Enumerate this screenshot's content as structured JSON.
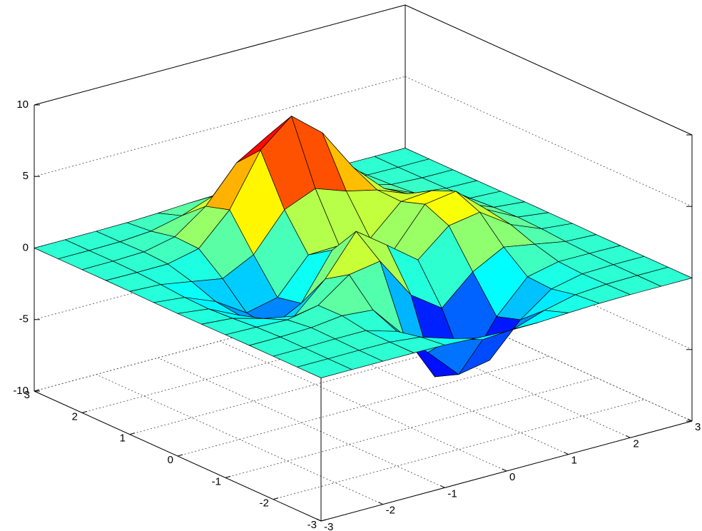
{
  "chart_data": {
    "type": "surface",
    "x": [
      -3,
      -2.5,
      -2,
      -1.5,
      -1,
      -0.5,
      0,
      0.5,
      1,
      1.5,
      2,
      2.5,
      3
    ],
    "y": [
      -3,
      -2.5,
      -2,
      -1.5,
      -1,
      -0.5,
      0,
      0.5,
      1,
      1.5,
      2,
      2.5,
      3
    ],
    "z": [
      [
        0,
        0,
        0,
        0,
        -0.03,
        -0.14,
        -0.24,
        -0.22,
        -0.11,
        -0.03,
        0,
        0,
        0
      ],
      [
        0,
        0,
        0.01,
        0,
        -0.23,
        -0.92,
        -1.57,
        -1.41,
        -0.69,
        -0.18,
        -0.03,
        0,
        0
      ],
      [
        0,
        0.01,
        0.05,
        0.05,
        -0.59,
        -2.64,
        -4.76,
        -4.35,
        -2.1,
        -0.53,
        -0.06,
        0,
        0
      ],
      [
        0,
        0.01,
        0.08,
        0.33,
        0.15,
        -2.19,
        -5.68,
        -5.76,
        -2.64,
        -0.44,
        0.04,
        0.03,
        0
      ],
      [
        -0.01,
        -0.06,
        -0.13,
        0.3,
        1.86,
        2.22,
        -0.72,
        -2.22,
        -0.27,
        0.88,
        0.5,
        0.11,
        0.01
      ],
      [
        -0.03,
        -0.2,
        -0.8,
        -1.21,
        0.8,
        3.55,
        2,
        0.39,
        2.2,
        2.56,
        1.12,
        0.24,
        0.03
      ],
      [
        -0.04,
        -0.3,
        -1.33,
        -2.77,
        -1.65,
        1.48,
        0.98,
        0.37,
        2.94,
        3.27,
        1.41,
        0.3,
        0.03
      ],
      [
        -0.03,
        -0.25,
        -1.12,
        -2.49,
        -2,
        0.39,
        0.46,
        0.38,
        2.38,
        2.56,
        1.09,
        0.23,
        0.03
      ],
      [
        -0.01,
        -0.11,
        -0.48,
        -0.86,
        0.23,
        2.79,
        3.69,
        2.93,
        2.43,
        1.58,
        0.58,
        0.11,
        0.01
      ],
      [
        0,
        -0.02,
        -0.01,
        0.48,
        2.61,
        6.2,
        8,
        6.25,
        3.25,
        1.19,
        0.29,
        0.05,
        0
      ],
      [
        0,
        0.01,
        0.08,
        0.55,
        2.1,
        4.56,
        5.86,
        4.57,
        2.21,
        0.68,
        0.13,
        0.02,
        0
      ],
      [
        0,
        0,
        0.03,
        0.19,
        0.69,
        1.47,
        1.88,
        1.47,
        0.7,
        0.2,
        0.04,
        0,
        0
      ],
      [
        0,
        0,
        0.01,
        0.03,
        0.11,
        0.23,
        0.3,
        0.23,
        0.11,
        0.03,
        0.01,
        0,
        0
      ]
    ],
    "xlim": [
      -3,
      3
    ],
    "ylim": [
      -3,
      3
    ],
    "zlim": [
      -10,
      10
    ],
    "xticks": [
      -3,
      -2,
      -1,
      0,
      1,
      2,
      3
    ],
    "yticks": [
      -3,
      -2,
      -1,
      0,
      1,
      2,
      3
    ],
    "zticks": [
      -10,
      -5,
      0,
      5,
      10
    ],
    "grid": true,
    "colormap": "jet",
    "edge_color": "#000000"
  }
}
